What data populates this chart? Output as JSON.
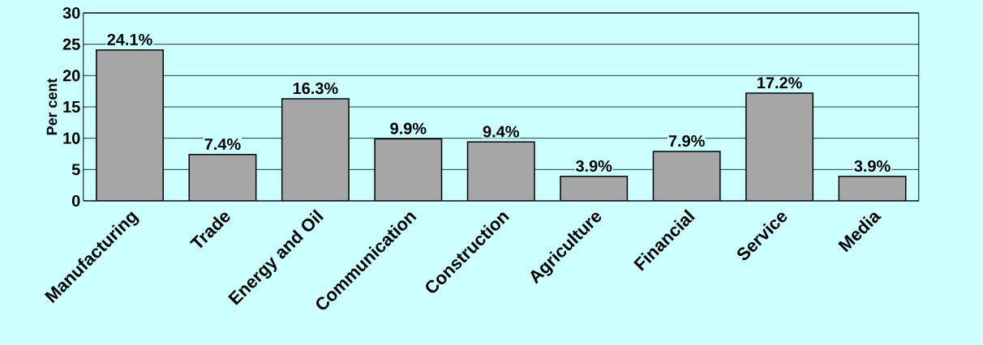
{
  "chart_data": {
    "type": "bar",
    "ylabel": "Per cent",
    "categories": [
      "Manufacturing",
      "Trade",
      "Energy and Oil",
      "Communication",
      "Construction",
      "Agriculture",
      "Financial",
      "Service",
      "Media"
    ],
    "values": [
      24.1,
      7.4,
      16.3,
      9.9,
      9.4,
      3.9,
      7.9,
      17.2,
      3.9
    ],
    "value_labels": [
      "24.1%",
      "7.4%",
      "16.3%",
      "9.9%",
      "9.4%",
      "3.9%",
      "7.9%",
      "17.2%",
      "3.9%"
    ],
    "color": "#a6a6a6",
    "ylim": [
      0,
      30
    ],
    "yticks": [
      0,
      5,
      10,
      15,
      20,
      25,
      30
    ],
    "grid": "y"
  }
}
